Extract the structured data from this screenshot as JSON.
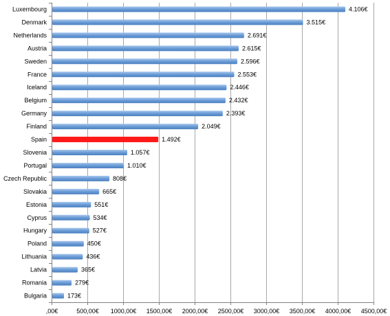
{
  "chart_data": {
    "type": "bar",
    "orientation": "horizontal",
    "categories": [
      "Luxembourg",
      "Denmark",
      "Netherlands",
      "Austria",
      "Sweden",
      "France",
      "Iceland",
      "Belgium",
      "Germany",
      "Finland",
      "Spain",
      "Slovenia",
      "Portugal",
      "Czech Republic",
      "Slovakia",
      "Estonia",
      "Cyprus",
      "Hungary",
      "Poland",
      "Lithuania",
      "Latvia",
      "Romania",
      "Bulgaria"
    ],
    "values": [
      4106,
      3515,
      2691,
      2615,
      2596,
      2553,
      2446,
      2432,
      2393,
      2049,
      1492,
      1057,
      1010,
      808,
      665,
      551,
      534,
      527,
      450,
      436,
      365,
      279,
      173
    ],
    "value_labels": [
      "4.106€",
      "3.515€",
      "2.691€",
      "2.615€",
      "2.596€",
      "2.553€",
      "2.446€",
      "2.432€",
      "2.393€",
      "2.049€",
      "1.492€",
      "1.057€",
      "1.010€",
      "808€",
      "665€",
      "551€",
      "534€",
      "527€",
      "450€",
      "436€",
      "365€",
      "279€",
      "173€"
    ],
    "highlight": "Spain",
    "xlim": [
      0,
      4500
    ],
    "xticks": [
      0,
      500,
      1000,
      1500,
      2000,
      2500,
      3000,
      3500,
      4000,
      4500
    ],
    "xtick_labels": [
      ",00€",
      "500,00€",
      "1000,00€",
      "1500,00€",
      "2000,00€",
      "2500,00€",
      "3000,00€",
      "3500,00€",
      "4000,00€",
      "4500,00€"
    ],
    "title": "",
    "xlabel": "",
    "ylabel": "",
    "grid": "vertical",
    "legend": "none",
    "colors": {
      "bar": "#6f9fd8",
      "bar_light": "#a9c8ee",
      "bar_dark": "#4a7fc0",
      "highlight": "#ff1a1a",
      "grid": "#a6a6a6",
      "axis": "#7f7f7f"
    }
  }
}
